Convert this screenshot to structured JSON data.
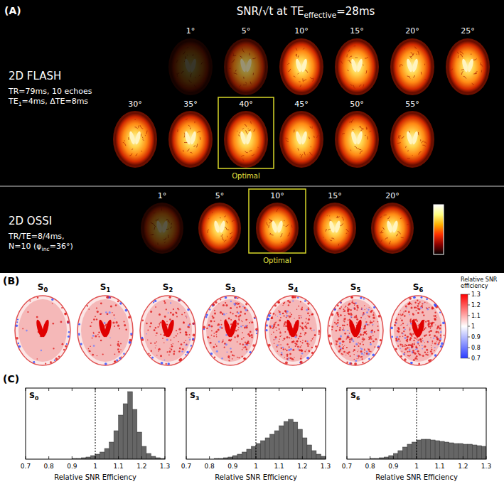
{
  "panel_a": {
    "letter": "(A)",
    "title": [
      {
        "text": "SNR/√t  at TE"
      },
      {
        "text": "effective",
        "sub": true
      },
      {
        "text": "=28ms"
      }
    ],
    "colorbar": {
      "colors": [
        "#000000",
        "#8a0000",
        "#ff3000",
        "#ffb000",
        "#ffff80",
        "#ffffff"
      ]
    },
    "rows": [
      {
        "name": "2D FLASH",
        "params": [
          [
            {
              "text": "TR=79ms, 10 echoes"
            }
          ],
          [
            {
              "text": "TE"
            },
            {
              "text": "1",
              "sub": true
            },
            {
              "text": "=4ms, ΔTE=8ms"
            }
          ]
        ],
        "flip_angles": [
          "1°",
          "5°",
          "10°",
          "15°",
          "20°",
          "25°",
          "30°",
          "35°",
          "40°",
          "45°",
          "50°",
          "55°"
        ],
        "optimal": "40°",
        "optimal_label": "Optimal"
      },
      {
        "name": "2D OSSI",
        "params": [
          [
            {
              "text": "TR/TE=8/4ms,"
            }
          ],
          [
            {
              "text": "N=10 (φ"
            },
            {
              "text": "inc",
              "sub": true
            },
            {
              "text": "=36°)"
            }
          ]
        ],
        "flip_angles": [
          "1°",
          "5°",
          "10°",
          "15°",
          "20°"
        ],
        "optimal": "10°",
        "optimal_label": "Optimal"
      }
    ]
  },
  "panel_b": {
    "letter": "(B)",
    "labels": [
      [
        {
          "text": "S"
        },
        {
          "text": "0",
          "sub": true
        }
      ],
      [
        {
          "text": "S"
        },
        {
          "text": "1",
          "sub": true
        }
      ],
      [
        {
          "text": "S"
        },
        {
          "text": "2",
          "sub": true
        }
      ],
      [
        {
          "text": "S"
        },
        {
          "text": "3",
          "sub": true
        }
      ],
      [
        {
          "text": "S"
        },
        {
          "text": "4",
          "sub": true
        }
      ],
      [
        {
          "text": "S"
        },
        {
          "text": "5",
          "sub": true
        }
      ],
      [
        {
          "text": "S"
        },
        {
          "text": "6",
          "sub": true
        }
      ]
    ],
    "colorbar": {
      "label": "Relative SNR efficiency",
      "range": [
        0.7,
        1.3
      ],
      "ticks": [
        0.7,
        0.8,
        0.9,
        1,
        1.1,
        1.2,
        1.3
      ],
      "colors": [
        "#2a3cff",
        "#ffffff",
        "#ff0000"
      ]
    }
  },
  "panel_c": {
    "letter": "(C)"
  },
  "chart_data": [
    {
      "type": "histogram",
      "title": [
        {
          "text": "S"
        },
        {
          "text": "0",
          "sub": true
        }
      ],
      "bins": [
        0.7,
        0.72,
        0.74,
        0.76,
        0.78,
        0.8,
        0.82,
        0.84,
        0.86,
        0.88,
        0.9,
        0.92,
        0.94,
        0.96,
        0.98,
        1,
        1.02,
        1.04,
        1.06,
        1.08,
        1.1,
        1.12,
        1.14,
        1.16,
        1.18,
        1.2,
        1.22,
        1.24,
        1.26,
        1.28,
        1.3
      ],
      "values": [
        0,
        0,
        0,
        0,
        0,
        0,
        0,
        0,
        0,
        0,
        1,
        1,
        2,
        3,
        5,
        7,
        10,
        15,
        24,
        40,
        62,
        78,
        95,
        70,
        38,
        18,
        8,
        4,
        2,
        1
      ],
      "xlim": [
        0.7,
        1.3
      ],
      "xticks": [
        0.7,
        0.8,
        0.9,
        1,
        1.1,
        1.2,
        1.3
      ],
      "ylim": [
        0,
        100
      ],
      "x_label": "Relative SNR Efficiency",
      "vline": 1,
      "color": "#666666",
      "tick_labels": "x",
      "grid": false
    },
    {
      "type": "histogram",
      "title": [
        {
          "text": "S"
        },
        {
          "text": "3",
          "sub": true
        }
      ],
      "bins": [
        0.7,
        0.72,
        0.74,
        0.76,
        0.78,
        0.8,
        0.82,
        0.84,
        0.86,
        0.88,
        0.9,
        0.92,
        0.94,
        0.96,
        0.98,
        1,
        1.02,
        1.04,
        1.06,
        1.08,
        1.1,
        1.12,
        1.14,
        1.16,
        1.18,
        1.2,
        1.22,
        1.24,
        1.26,
        1.28,
        1.3
      ],
      "values": [
        0,
        0,
        0,
        0,
        0,
        0,
        1,
        1,
        2,
        3,
        5,
        7,
        10,
        14,
        18,
        22,
        26,
        30,
        35,
        40,
        47,
        53,
        56,
        52,
        42,
        30,
        20,
        12,
        7,
        4
      ],
      "xlim": [
        0.7,
        1.3
      ],
      "xticks": [
        0.7,
        0.8,
        0.9,
        1,
        1.1,
        1.2,
        1.3
      ],
      "ylim": [
        0,
        100
      ],
      "x_label": "Relative SNR Efficiency",
      "vline": 1,
      "color": "#666666",
      "tick_labels": "x",
      "grid": false
    },
    {
      "type": "histogram",
      "title": [
        {
          "text": "S"
        },
        {
          "text": "6",
          "sub": true
        }
      ],
      "bins": [
        0.7,
        0.72,
        0.74,
        0.76,
        0.78,
        0.8,
        0.82,
        0.84,
        0.86,
        0.88,
        0.9,
        0.92,
        0.94,
        0.96,
        0.98,
        1,
        1.02,
        1.04,
        1.06,
        1.08,
        1.1,
        1.12,
        1.14,
        1.16,
        1.18,
        1.2,
        1.22,
        1.24,
        1.26,
        1.28,
        1.3
      ],
      "values": [
        0,
        0,
        0,
        0,
        0,
        1,
        1,
        2,
        3,
        5,
        8,
        12,
        17,
        21,
        24,
        27,
        28,
        28,
        27,
        26,
        25,
        24,
        23,
        22,
        22,
        21,
        21,
        20,
        19,
        18
      ],
      "xlim": [
        0.7,
        1.3
      ],
      "xticks": [
        0.7,
        0.8,
        0.9,
        1,
        1.1,
        1.2,
        1.3
      ],
      "ylim": [
        0,
        100
      ],
      "x_label": "Relative SNR Efficiency",
      "vline": 1,
      "color": "#666666",
      "tick_labels": "x",
      "grid": false
    }
  ]
}
